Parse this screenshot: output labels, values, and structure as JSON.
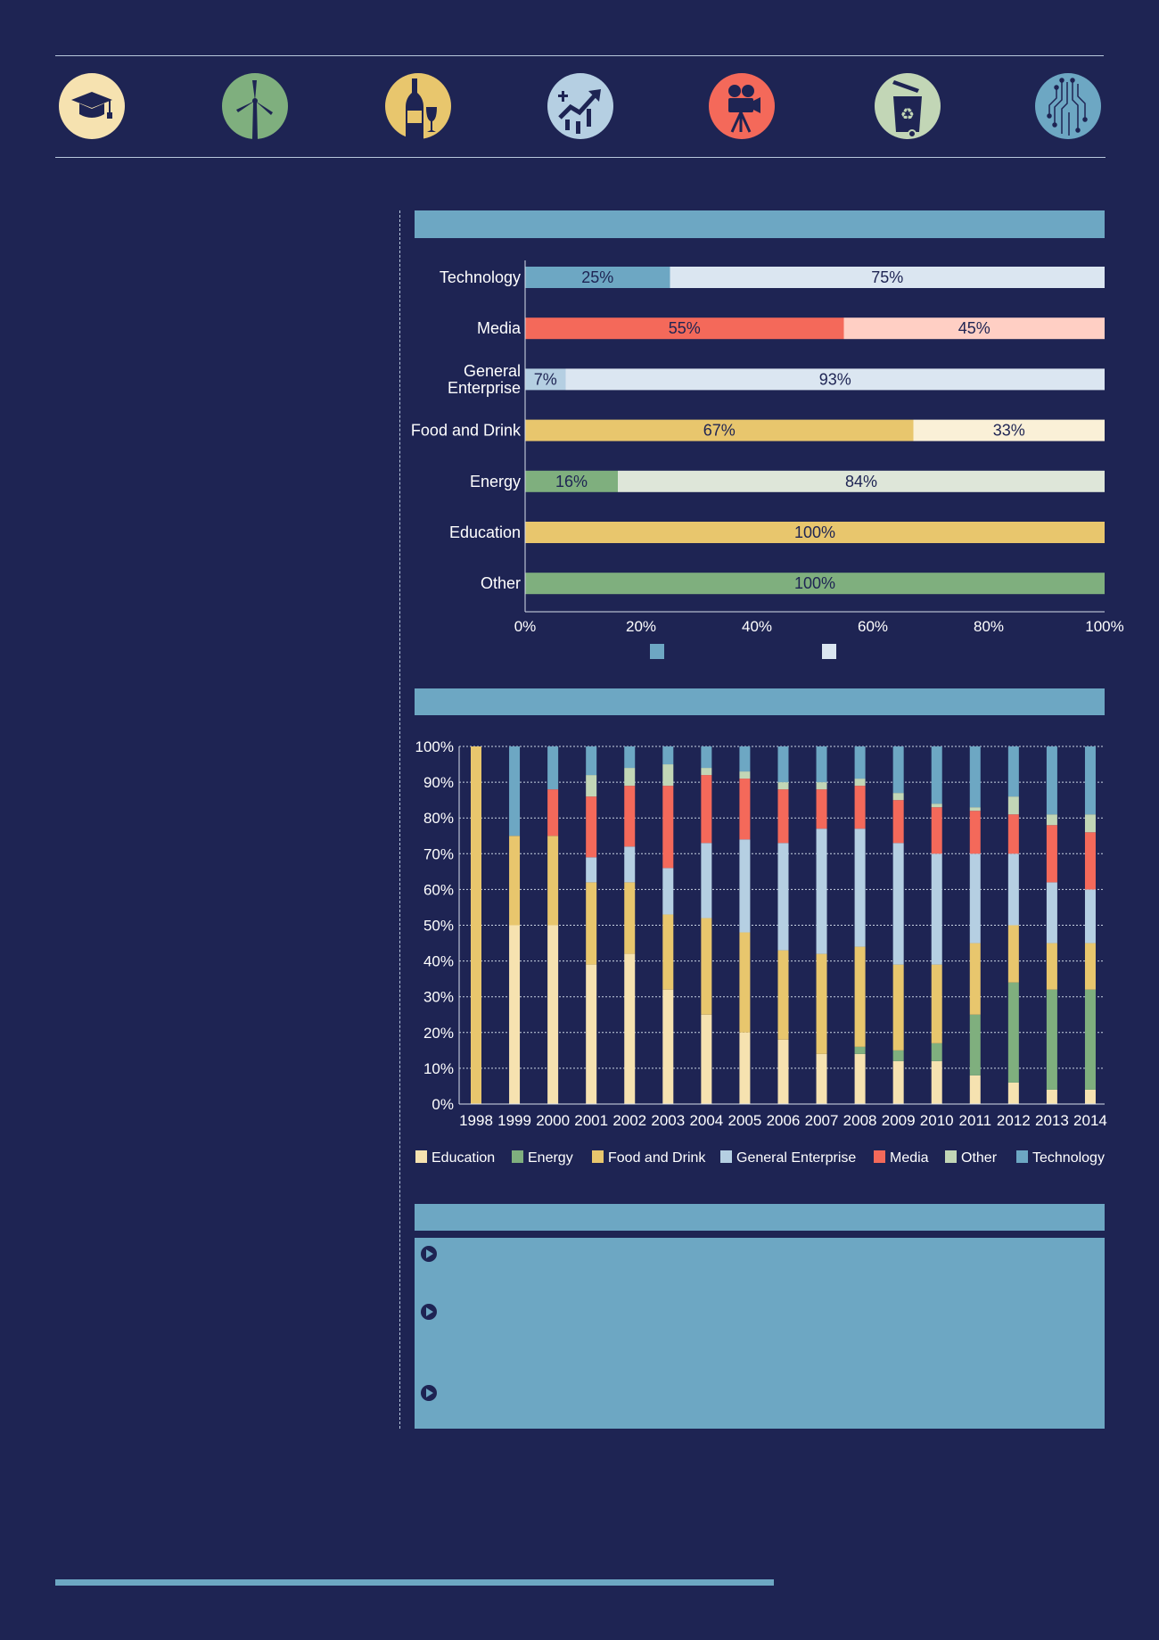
{
  "icons": [
    {
      "name": "graduation-cap-icon",
      "color": "#f6e2b0"
    },
    {
      "name": "wind-turbine-icon",
      "color": "#7faf7e"
    },
    {
      "name": "wine-bottle-icon",
      "color": "#e8c66d"
    },
    {
      "name": "stock-chart-icon",
      "color": "#b5cfe2"
    },
    {
      "name": "film-camera-icon",
      "color": "#f4695a"
    },
    {
      "name": "recycle-bin-icon",
      "color": "#c2d6b6"
    },
    {
      "name": "circuit-icon",
      "color": "#6da7c3"
    }
  ],
  "colors": {
    "background": "#1e2453",
    "header_bar": "#6da7c3",
    "Education": "#f6e2b0",
    "Energy": "#7faf7e",
    "Food and Drink": "#e8c66d",
    "General Enterprise": "#b5cfe2",
    "Media": "#f4695a",
    "Other": "#c2d6b6",
    "Technology": "#6da7c3"
  },
  "chart_data": [
    {
      "type": "bar",
      "orientation": "horizontal",
      "stacked": true,
      "title": "",
      "categories": [
        "Technology",
        "Media",
        "General Enterprise",
        "Food and Drink",
        "Energy",
        "Education",
        "Other"
      ],
      "category_lines": [
        [
          "Technology"
        ],
        [
          "Media"
        ],
        [
          "General",
          "Enterprise"
        ],
        [
          "Food and Drink"
        ],
        [
          "Energy"
        ],
        [
          "Education"
        ],
        [
          "Other"
        ]
      ],
      "series": [
        {
          "values": [
            25,
            55,
            7,
            67,
            16,
            100,
            100
          ],
          "labels": [
            "25%",
            "55%",
            "7%",
            "67%",
            "16%",
            "100%",
            "100%"
          ]
        },
        {
          "values": [
            75,
            45,
            93,
            33,
            84,
            0,
            0
          ],
          "labels": [
            "75%",
            "45%",
            "93%",
            "33%",
            "84%",
            "",
            ""
          ]
        }
      ],
      "bar_colors": [
        [
          "#6da7c3",
          "#dbe6f1"
        ],
        [
          "#f4695a",
          "#ffcfc4"
        ],
        [
          "#b5cfe2",
          "#dbe6f1"
        ],
        [
          "#e8c66d",
          "#faf0d7"
        ],
        [
          "#7faf7e",
          "#dee6d9"
        ],
        [
          "#e8c66d",
          "#faf0d7"
        ],
        [
          "#7faf7e",
          "#dee6d9"
        ]
      ],
      "xlim": [
        0,
        100
      ],
      "xticks": [
        "0%",
        "20%",
        "40%",
        "60%",
        "80%",
        "100%"
      ],
      "legend_swatches": [
        "#6da7c3",
        "#dbe6f1"
      ],
      "legend_position": "bottom"
    },
    {
      "type": "bar",
      "orientation": "vertical",
      "stacked": true,
      "title": "",
      "categories": [
        "1998",
        "1999",
        "2000",
        "2001",
        "2002",
        "2003",
        "2004",
        "2005",
        "2006",
        "2007",
        "2008",
        "2009",
        "2010",
        "2011",
        "2012",
        "2013",
        "2014"
      ],
      "series": [
        {
          "name": "Education",
          "values": [
            0,
            50,
            50,
            39,
            42,
            32,
            25,
            20,
            18,
            14,
            14,
            12,
            12,
            8,
            6,
            4,
            4
          ]
        },
        {
          "name": "Energy",
          "values": [
            0,
            0,
            0,
            0,
            0,
            0,
            0,
            0,
            0,
            0,
            2,
            3,
            5,
            17,
            28,
            28,
            28
          ]
        },
        {
          "name": "Food and Drink",
          "values": [
            100,
            25,
            25,
            23,
            20,
            21,
            27,
            28,
            25,
            28,
            28,
            24,
            22,
            20,
            16,
            13,
            13
          ]
        },
        {
          "name": "General Enterprise",
          "values": [
            0,
            0,
            0,
            7,
            10,
            13,
            21,
            26,
            30,
            35,
            33,
            34,
            31,
            25,
            20,
            17,
            15
          ]
        },
        {
          "name": "Media",
          "values": [
            0,
            0,
            13,
            17,
            17,
            23,
            19,
            17,
            15,
            11,
            12,
            12,
            13,
            12,
            11,
            16,
            16
          ]
        },
        {
          "name": "Other",
          "values": [
            0,
            0,
            0,
            6,
            5,
            6,
            2,
            2,
            2,
            2,
            2,
            2,
            1,
            1,
            5,
            3,
            5
          ]
        },
        {
          "name": "Technology",
          "values": [
            0,
            25,
            12,
            8,
            6,
            5,
            6,
            7,
            10,
            10,
            9,
            13,
            16,
            17,
            14,
            19,
            19
          ]
        }
      ],
      "ylim": [
        0,
        100
      ],
      "yticks": [
        "0%",
        "10%",
        "20%",
        "30%",
        "40%",
        "50%",
        "60%",
        "70%",
        "80%",
        "90%",
        "100%"
      ],
      "grid": true,
      "legend_position": "bottom"
    }
  ]
}
